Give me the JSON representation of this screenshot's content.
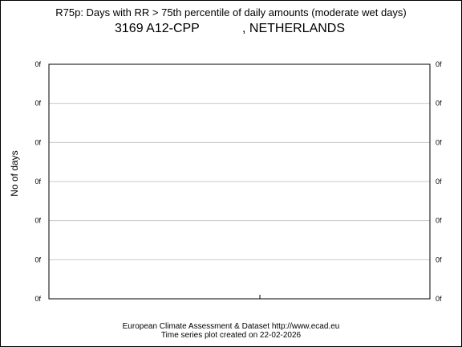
{
  "title": "R75p: Days with RR > 75th percentile of daily amounts (moderate wet days)",
  "station": "3169 A12-CPP",
  "country": ", NETHERLANDS",
  "footer": {
    "line1": "European Climate Assessment & Dataset  http://www.ecad.eu",
    "line2": "Time series plot created on 22-02-2026"
  },
  "chart_data": {
    "type": "line",
    "title": "R75p: Days with RR > 75th percentile of daily amounts (moderate wet days)",
    "subtitle": "3169 A12-CPP , NETHERLANDS",
    "xlabel": "",
    "ylabel": "No of days",
    "y_tick_labels": [
      "0f",
      "0f",
      "0f",
      "0f",
      "0f",
      "0f",
      "0f"
    ],
    "x_tick_labels": [],
    "series": [],
    "grid": true,
    "legend": "none"
  }
}
